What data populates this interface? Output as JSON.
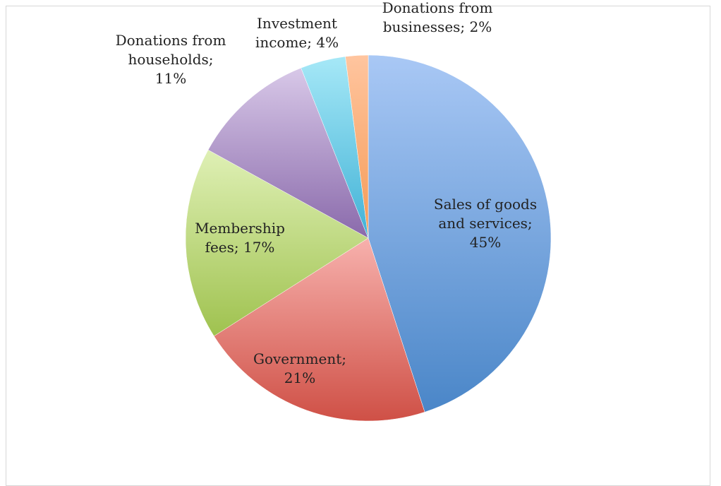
{
  "chart_data": {
    "type": "pie",
    "title": "",
    "categories": [
      "Sales of goods and services",
      "Government",
      "Membership fees",
      "Donations from households",
      "Investment income",
      "Donations from businesses"
    ],
    "values": [
      45,
      21,
      17,
      11,
      4,
      2
    ],
    "unit": "%",
    "legend": "none",
    "data_labels": [
      {
        "lines": [
          "Sales of goods",
          "and services;",
          "45%"
        ]
      },
      {
        "lines": [
          "Government;",
          "21%"
        ]
      },
      {
        "lines": [
          "Membership",
          "fees; 17%"
        ]
      },
      {
        "lines": [
          "Donations from",
          "households;",
          "11%"
        ]
      },
      {
        "lines": [
          "Investment",
          "income; 4%"
        ]
      },
      {
        "lines": [
          "Donations from",
          "businesses; 2%"
        ]
      }
    ],
    "colors": [
      {
        "light": "#a9c8f5",
        "dark": "#4a86c8"
      },
      {
        "light": "#f7b1ad",
        "dark": "#cf5046"
      },
      {
        "light": "#dff0b5",
        "dark": "#9fc24f"
      },
      {
        "light": "#d8c8e8",
        "dark": "#8a6aab"
      },
      {
        "light": "#a6e8f7",
        "dark": "#41b2d6"
      },
      {
        "light": "#ffc59f",
        "dark": "#f59a55"
      }
    ]
  }
}
